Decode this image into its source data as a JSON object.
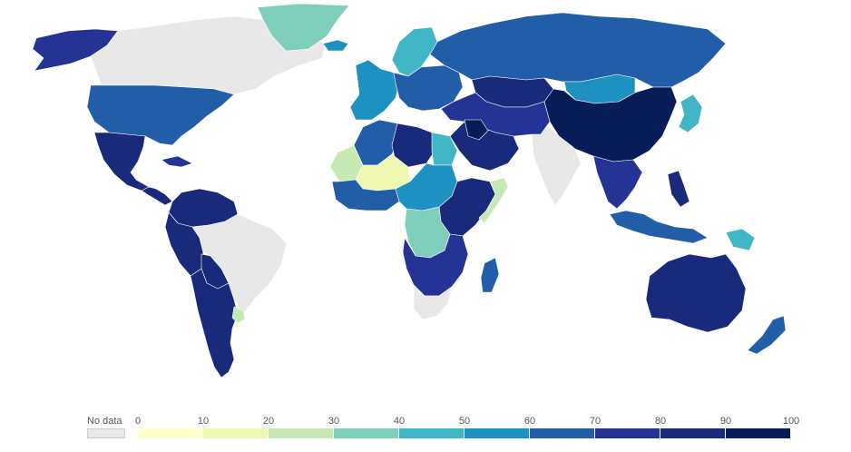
{
  "legend": {
    "no_data_label": "No data",
    "ticks": [
      "0",
      "10",
      "20",
      "30",
      "40",
      "50",
      "60",
      "70",
      "80",
      "90",
      "100"
    ],
    "bin_colors": [
      "#ffffcc",
      "#eef8b0",
      "#c7e9b4",
      "#7fcdbb",
      "#41b6c4",
      "#1d91c0",
      "#225ea8",
      "#253494",
      "#1a2a7a",
      "#081d58"
    ],
    "no_data_color": "#e8e8e8"
  },
  "map": {
    "regions": [
      {
        "name": "alaska",
        "value": 70
      },
      {
        "name": "canada",
        "value": null
      },
      {
        "name": "greenland",
        "value": 35
      },
      {
        "name": "usa",
        "value": 68
      },
      {
        "name": "mexico",
        "value": 80
      },
      {
        "name": "central-america",
        "value": 80
      },
      {
        "name": "cuba",
        "value": 75
      },
      {
        "name": "venezuela-colombia",
        "value": 88
      },
      {
        "name": "peru-ecuador",
        "value": 85
      },
      {
        "name": "brazil",
        "value": null
      },
      {
        "name": "bolivia",
        "value": 80
      },
      {
        "name": "argentina-chile",
        "value": 85
      },
      {
        "name": "uruguay",
        "value": 20
      },
      {
        "name": "iceland",
        "value": 50
      },
      {
        "name": "scandinavia",
        "value": 40
      },
      {
        "name": "western-europe",
        "value": 55
      },
      {
        "name": "eastern-europe",
        "value": 60
      },
      {
        "name": "russia",
        "value": 68
      },
      {
        "name": "kazakhstan",
        "value": 80
      },
      {
        "name": "mongolia",
        "value": 50
      },
      {
        "name": "china",
        "value": 92
      },
      {
        "name": "india",
        "value": null
      },
      {
        "name": "middle-east",
        "value": 75
      },
      {
        "name": "saudi-arabia",
        "value": 82
      },
      {
        "name": "iraq",
        "value": 95
      },
      {
        "name": "north-africa-west",
        "value": 68
      },
      {
        "name": "libya",
        "value": 85
      },
      {
        "name": "egypt",
        "value": 40
      },
      {
        "name": "mauritania",
        "value": 20
      },
      {
        "name": "mali-niger",
        "value": 15
      },
      {
        "name": "west-africa",
        "value": 60
      },
      {
        "name": "central-africa",
        "value": 55
      },
      {
        "name": "east-africa",
        "value": 85
      },
      {
        "name": "somalia",
        "value": 20
      },
      {
        "name": "drc",
        "value": 35
      },
      {
        "name": "southern-africa",
        "value": 75
      },
      {
        "name": "south-africa",
        "value": null
      },
      {
        "name": "madagascar",
        "value": 65
      },
      {
        "name": "southeast-asia",
        "value": 75
      },
      {
        "name": "indonesia",
        "value": 60
      },
      {
        "name": "philippines",
        "value": 80
      },
      {
        "name": "japan",
        "value": 40
      },
      {
        "name": "png",
        "value": 45
      },
      {
        "name": "australia",
        "value": 82
      },
      {
        "name": "new-zealand",
        "value": 68
      }
    ]
  }
}
